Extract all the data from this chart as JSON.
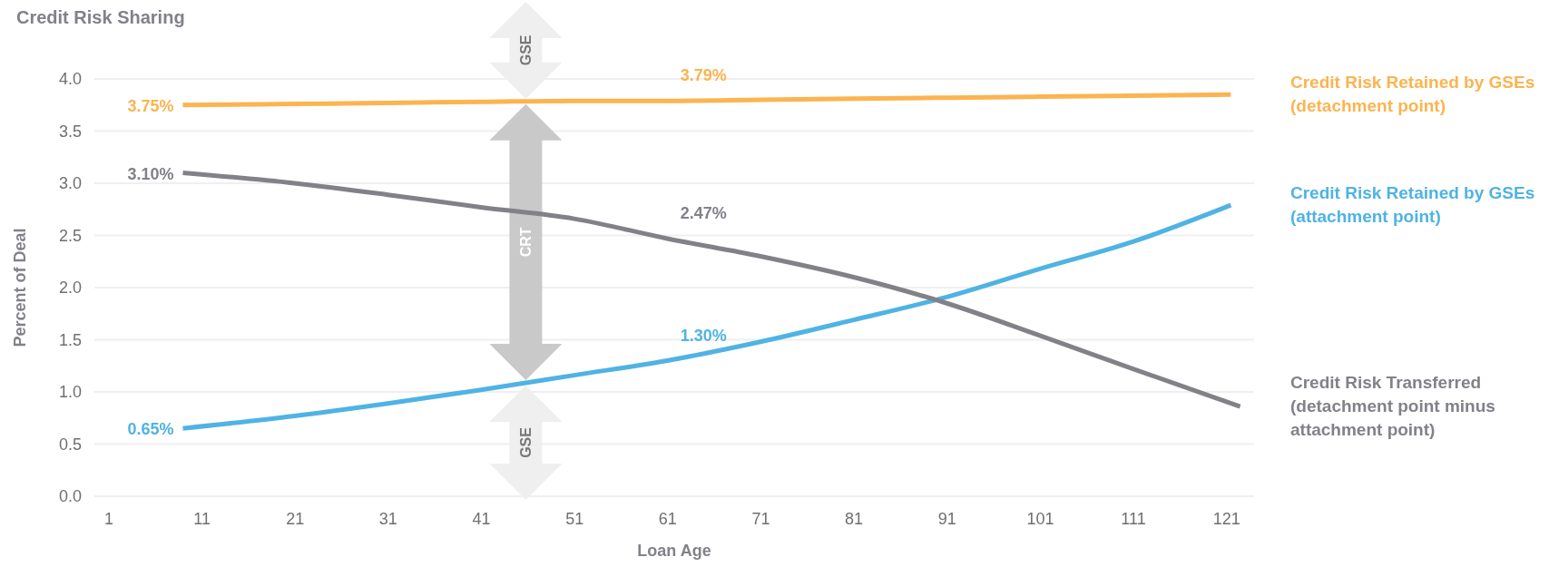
{
  "chart_data": {
    "type": "line",
    "title": "Credit Risk Sharing",
    "xlabel": "Loan Age",
    "ylabel": "Percent of Deal",
    "xlim": [
      -0.5,
      124
    ],
    "xticks": [
      1,
      11,
      21,
      31,
      41,
      51,
      61,
      71,
      81,
      91,
      101,
      111,
      121
    ],
    "ylim": [
      0,
      4
    ],
    "yticks": [
      {
        "value": 0,
        "label": "0.0"
      },
      {
        "value": 0.5,
        "label": "0.5"
      },
      {
        "value": 1,
        "label": "1.0"
      },
      {
        "value": 1.5,
        "label": "1.5"
      },
      {
        "value": 2,
        "label": "2.0"
      },
      {
        "value": 2.5,
        "label": "2.5"
      },
      {
        "value": 3,
        "label": "3.0"
      },
      {
        "value": 3.5,
        "label": "3.5"
      },
      {
        "value": 4,
        "label": "4.0"
      }
    ],
    "grid": "y",
    "line_style": "solid",
    "marker": "none",
    "series": [
      {
        "name": "Credit Risk Retained by GSEs (detachment point)",
        "color": "#fbb450",
        "x": [
          9,
          21,
          31,
          41,
          51,
          61,
          71,
          81,
          91,
          101,
          111,
          121.5
        ],
        "values": [
          3.75,
          3.76,
          3.77,
          3.78,
          3.79,
          3.79,
          3.8,
          3.81,
          3.82,
          3.83,
          3.84,
          3.85
        ],
        "value_labels": [
          "3.75%",
          null,
          null,
          null,
          null,
          "3.79%",
          null,
          null,
          null,
          null,
          null,
          null
        ]
      },
      {
        "name": "Credit Risk Retained by GSEs (attachment point)",
        "color": "#4fb3e3",
        "x": [
          9,
          21,
          31,
          41,
          51,
          61,
          71,
          81,
          91,
          101,
          111,
          121.5
        ],
        "values": [
          0.65,
          0.77,
          0.89,
          1.02,
          1.16,
          1.3,
          1.48,
          1.69,
          1.91,
          2.18,
          2.44,
          2.79
        ],
        "value_labels": [
          "0.65%",
          null,
          null,
          null,
          null,
          "1.30%",
          null,
          null,
          null,
          null,
          null,
          null
        ]
      },
      {
        "name": "Credit Risk Transferred (detachment point minus attachment point)",
        "color": "#838188",
        "x": [
          9,
          21,
          31,
          41,
          51,
          61,
          71,
          81,
          91,
          101,
          111,
          122.5
        ],
        "values": [
          3.1,
          3.0,
          2.89,
          2.77,
          2.66,
          2.47,
          2.3,
          2.1,
          1.85,
          1.54,
          1.22,
          0.86
        ],
        "value_labels": [
          "3.10%",
          null,
          null,
          null,
          null,
          "2.47%",
          null,
          null,
          null,
          null,
          null,
          null
        ]
      }
    ],
    "annotations": [
      "GSE",
      "CRT",
      "GSE"
    ]
  }
}
